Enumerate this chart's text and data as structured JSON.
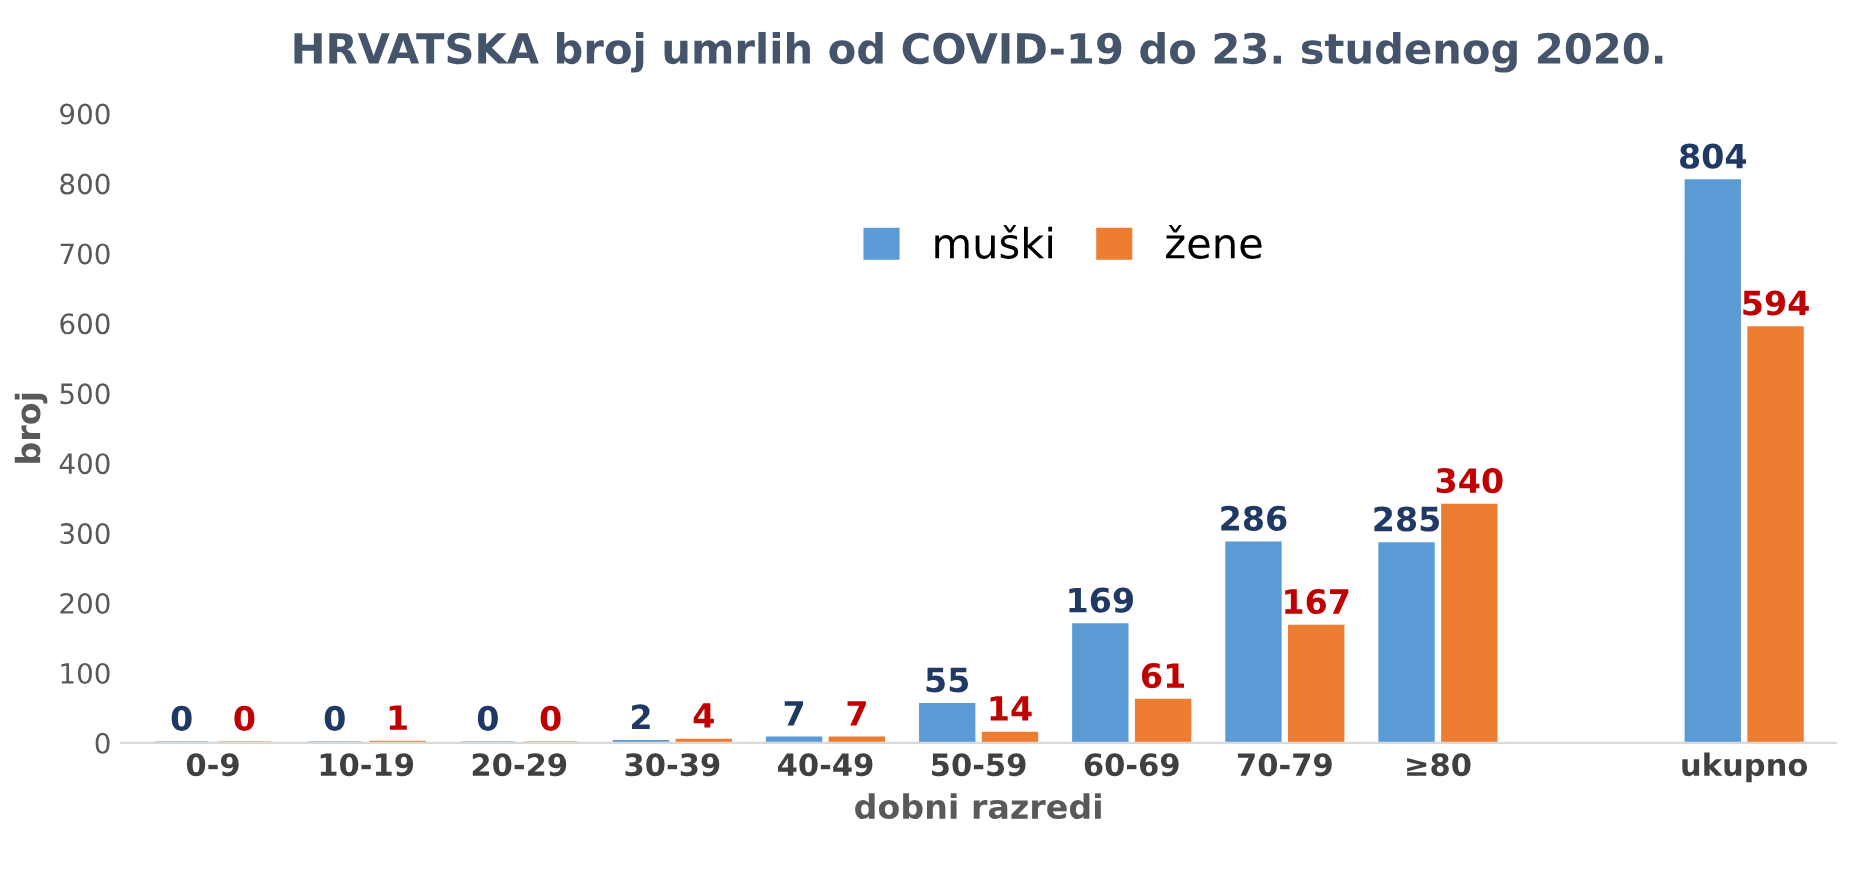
{
  "chart_data": {
    "type": "bar",
    "title": "HRVATSKA broj umrlih od COVID-19 do 23. studenog 2020.",
    "xlabel": "dobni razredi",
    "ylabel": "broj",
    "categories": [
      "0-9",
      "10-19",
      "20-29",
      "30-39",
      "40-49",
      "50-59",
      "60-69",
      "70-79",
      "≥80",
      null,
      "ukupno"
    ],
    "series": [
      {
        "name": "muški",
        "color": "#5b9bd5",
        "values": [
          0,
          0,
          0,
          2,
          7,
          55,
          169,
          286,
          285,
          null,
          804
        ]
      },
      {
        "name": "žene",
        "color": "#ed7d31",
        "values": [
          0,
          1,
          0,
          4,
          7,
          14,
          61,
          167,
          340,
          null,
          594
        ]
      }
    ],
    "ylim": [
      0,
      900
    ],
    "yticks": [
      0,
      100,
      200,
      300,
      400,
      500,
      600,
      700,
      800,
      900
    ],
    "grid": false,
    "legend": "top",
    "data_labels": true
  }
}
